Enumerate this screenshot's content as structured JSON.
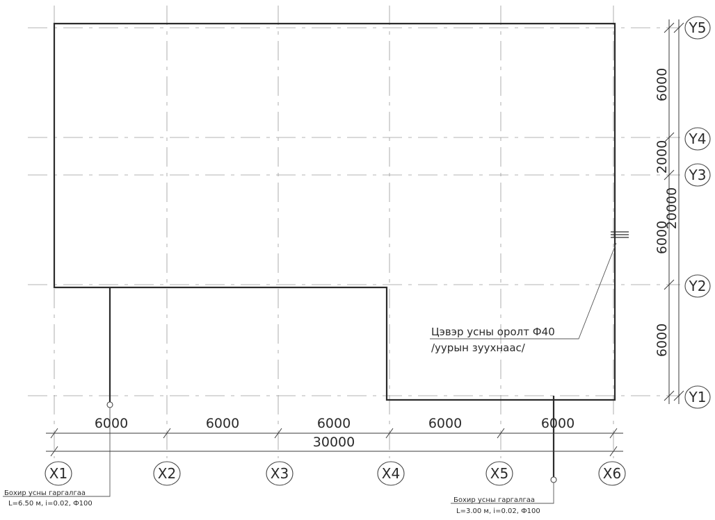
{
  "axes": {
    "x": [
      "X1",
      "X2",
      "X3",
      "X4",
      "X5",
      "X6"
    ],
    "y": [
      "Y1",
      "Y2",
      "Y3",
      "Y4",
      "Y5"
    ]
  },
  "dimensions": {
    "bottom": [
      "6000",
      "6000",
      "6000",
      "6000",
      "6000"
    ],
    "bottom_total": "30000",
    "right": [
      "6000",
      "6000",
      "2000",
      "6000"
    ],
    "right_total": "20000"
  },
  "notes": {
    "water_inlet_line1": "Цэвэр усны оролт Ф40",
    "water_inlet_line2": "/уурын зуухнаас/",
    "drain_left_line1": "Бохир усны гаргалгаа",
    "drain_left_line2": "L=6.50 м, i=0.02, Ф100",
    "drain_right_line1": "Бохир усны гаргалгаа",
    "drain_right_line2": "L=3.00 м, i=0.02, Ф100"
  }
}
